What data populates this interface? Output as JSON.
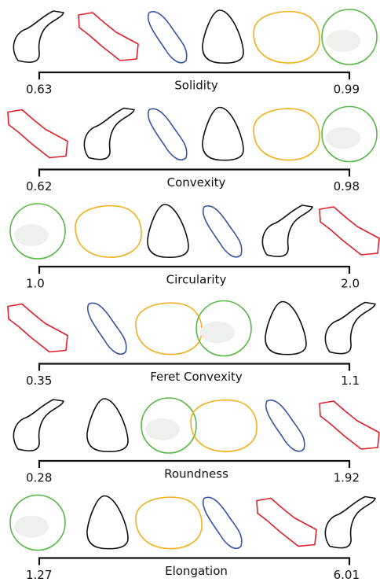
{
  "rows": [
    {
      "name": "Solidity",
      "min": "0.63",
      "max": "0.99"
    },
    {
      "name": "Convexity",
      "min": "0.62",
      "max": "0.98"
    },
    {
      "name": "Circularity",
      "min": "1.0",
      "max": "2.0"
    },
    {
      "name": "Feret Convexity",
      "min": "0.35",
      "max": "1.1"
    },
    {
      "name": "Roundness",
      "min": "0.28",
      "max": "1.92"
    },
    {
      "name": "Elongation",
      "min": "1.27",
      "max": "6.01"
    }
  ]
}
